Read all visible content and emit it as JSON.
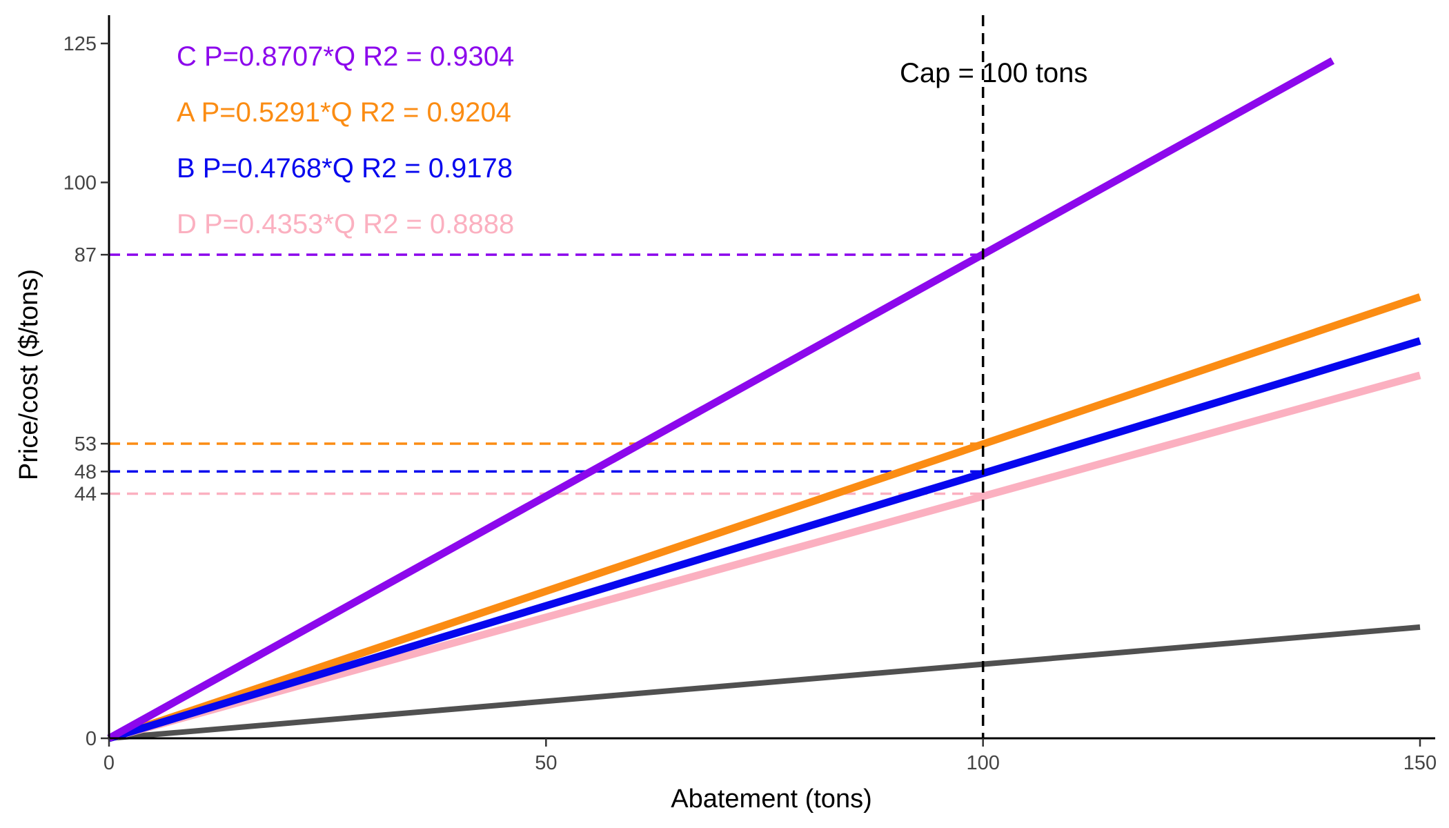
{
  "chart_data": {
    "type": "line",
    "title": "",
    "xlabel": "Abatement (tons)",
    "ylabel": "Price/cost ($/tons)",
    "xlim": [
      0,
      150
    ],
    "ylim": [
      0,
      125
    ],
    "x_ticks": [
      0,
      50,
      100,
      150
    ],
    "y_ticks": [
      0,
      44,
      48,
      53,
      87,
      100,
      125
    ],
    "grid": false,
    "legend_position": "top-left",
    "series": [
      {
        "name": "C",
        "color": "#8c08ec",
        "slope": 0.8707,
        "x": [
          0,
          140
        ],
        "y": [
          0,
          121.9
        ],
        "label": "C P=0.8707*Q R2 = 0.9304"
      },
      {
        "name": "A",
        "color": "#fb8c13",
        "slope": 0.5291,
        "x": [
          0,
          150
        ],
        "y": [
          0,
          79.4
        ],
        "label": "A P=0.5291*Q R2 = 0.9204"
      },
      {
        "name": "B",
        "color": "#0707ee",
        "slope": 0.4768,
        "x": [
          0,
          150
        ],
        "y": [
          0,
          71.5
        ],
        "label": "B P=0.4768*Q R2 = 0.9178"
      },
      {
        "name": "D",
        "color": "#fbb0c0",
        "slope": 0.4353,
        "x": [
          0,
          150
        ],
        "y": [
          0,
          65.3
        ],
        "label": "D P=0.4353*Q R2 = 0.8888"
      },
      {
        "name": "",
        "color": "#505050",
        "slope": 0.1333,
        "x": [
          0,
          150
        ],
        "y": [
          0,
          20
        ]
      }
    ],
    "reference_lines": [
      {
        "orientation": "vertical",
        "x": 100,
        "label": "Cap = 100 tons",
        "color": "#000000"
      },
      {
        "orientation": "horizontal",
        "y": 87,
        "x_end": 100,
        "color": "#8c08ec"
      },
      {
        "orientation": "horizontal",
        "y": 53,
        "x_end": 100,
        "color": "#fb8c13"
      },
      {
        "orientation": "horizontal",
        "y": 48,
        "x_end": 100,
        "color": "#0707ee"
      },
      {
        "orientation": "horizontal",
        "y": 44,
        "x_end": 100,
        "color": "#fbb0c0"
      }
    ]
  }
}
